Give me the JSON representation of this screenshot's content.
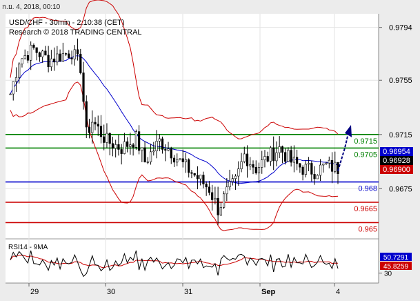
{
  "header": {
    "datetime": "ก.ย. 4, 2018, 00:10"
  },
  "chart_data": {
    "type": "candlestick",
    "title": "USD/CHF - 30min - 2:10:38 (CET)",
    "subtitle": "Research © 2018 TRADING CENTRAL",
    "y_ticks": [
      "0.9794",
      "0.9755",
      "0.9715",
      "0.9675"
    ],
    "ylim": [
      0.9638,
      0.9804
    ],
    "x_ticks": [
      "29",
      "30",
      "31",
      "Sep",
      "4"
    ],
    "levels": [
      {
        "label": "0.9715",
        "value": 0.9715,
        "color": "#008000"
      },
      {
        "label": "0.9705",
        "value": 0.9705,
        "color": "#008000"
      },
      {
        "label": "0.968",
        "value": 0.968,
        "color": "#0000cc"
      },
      {
        "label": "0.9665",
        "value": 0.9665,
        "color": "#cc0000"
      },
      {
        "label": "0.965",
        "value": 0.965,
        "color": "#cc0000"
      }
    ],
    "price_badges": [
      {
        "label": "0.96954",
        "value": 0.96954,
        "color": "#0000cc"
      },
      {
        "label": "0.96928",
        "value": 0.96928,
        "color": "#000000"
      },
      {
        "label": "0.96900",
        "value": 0.969,
        "color": "#cc0000"
      }
    ],
    "price_anchors": [
      [
        0,
        0.9745
      ],
      [
        3,
        0.977
      ],
      [
        8,
        0.9778
      ],
      [
        13,
        0.977
      ],
      [
        18,
        0.9774
      ],
      [
        21,
        0.9776
      ],
      [
        24,
        0.9765
      ],
      [
        26,
        0.9715
      ],
      [
        28,
        0.9725
      ],
      [
        33,
        0.971
      ],
      [
        38,
        0.9705
      ],
      [
        43,
        0.9712
      ],
      [
        46,
        0.9695
      ],
      [
        51,
        0.971
      ],
      [
        54,
        0.9705
      ],
      [
        58,
        0.9695
      ],
      [
        63,
        0.9685
      ],
      [
        68,
        0.9675
      ],
      [
        71,
        0.966
      ],
      [
        74,
        0.9672
      ],
      [
        77,
        0.968
      ],
      [
        80,
        0.97
      ],
      [
        84,
        0.969
      ],
      [
        88,
        0.9698
      ],
      [
        92,
        0.9705
      ],
      [
        96,
        0.9695
      ],
      [
        100,
        0.969
      ],
      [
        104,
        0.9688
      ],
      [
        108,
        0.9692
      ],
      [
        112,
        0.969
      ]
    ],
    "rsi": {
      "title": "RSI14 - 9MA",
      "value": "50.7291",
      "ma_value": "45.8259",
      "y_ticks": [
        "30"
      ]
    }
  }
}
